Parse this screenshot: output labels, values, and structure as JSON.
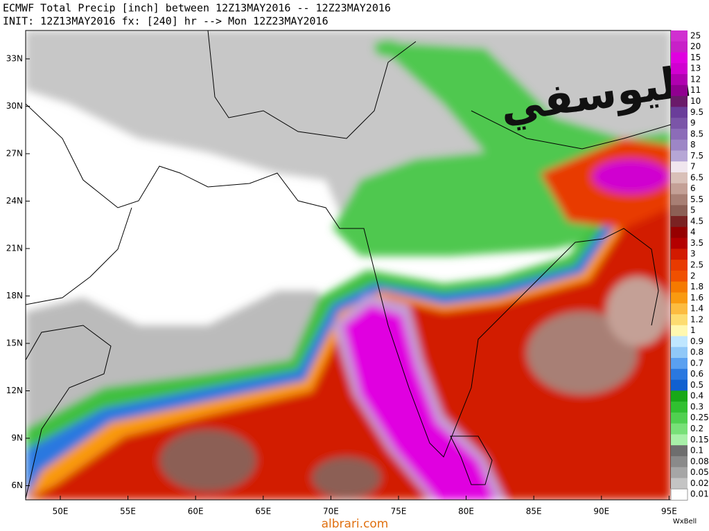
{
  "header": {
    "line1": "ECMWF Total Precip [inch] between 12Z13MAY2016 -- 12Z23MAY2016",
    "line2": "INIT: 12Z13MAY2016 fx: [240] hr --> Mon 12Z23MAY2016"
  },
  "axes": {
    "lat_labels": [
      "33N",
      "30N",
      "27N",
      "24N",
      "21N",
      "18N",
      "15N",
      "12N",
      "9N",
      "6N"
    ],
    "lon_labels": [
      "50E",
      "55E",
      "60E",
      "65E",
      "70E",
      "75E",
      "80E",
      "85E",
      "90E",
      "95E"
    ]
  },
  "legend": {
    "labels": [
      "25",
      "20",
      "15",
      "13",
      "12",
      "11",
      "10",
      "9.5",
      "9",
      "8.5",
      "8",
      "7.5",
      "7",
      "6.5",
      "6",
      "5.5",
      "5",
      "4.5",
      "4",
      "3.5",
      "3",
      "2.5",
      "2",
      "1.8",
      "1.6",
      "1.4",
      "1.2",
      "1",
      "0.9",
      "0.8",
      "0.7",
      "0.6",
      "0.5",
      "0.4",
      "0.3",
      "0.25",
      "0.2",
      "0.15",
      "0.1",
      "0.08",
      "0.05",
      "0.02",
      "0.01"
    ],
    "colors": [
      "#d030d0",
      "#c820c8",
      "#e000e0",
      "#d000d0",
      "#b000b0",
      "#900090",
      "#6a1a6a",
      "#6a3d9a",
      "#7b55a8",
      "#8c6cb8",
      "#9d86c6",
      "#b6a6d6",
      "#f0e6ee",
      "#d9c0b8",
      "#c4a096",
      "#a87f74",
      "#8c5f55",
      "#7a2222",
      "#960000",
      "#b40000",
      "#d21a00",
      "#e83a00",
      "#f05000",
      "#f57a00",
      "#f99a10",
      "#fcbc40",
      "#fddc70",
      "#fff8b0",
      "#bfe6ff",
      "#90c8f8",
      "#5aa0f0",
      "#2a78e0",
      "#1060d0",
      "#18a818",
      "#30c030",
      "#50d050",
      "#78e078",
      "#a8f0a8",
      "#6e6e6e",
      "#8a8a8a",
      "#a6a6a6",
      "#c4c4c4",
      "#ffffff"
    ]
  },
  "watermark": "اليوسفي",
  "footer": {
    "site": "albrari.com",
    "credit": "WxBell"
  }
}
